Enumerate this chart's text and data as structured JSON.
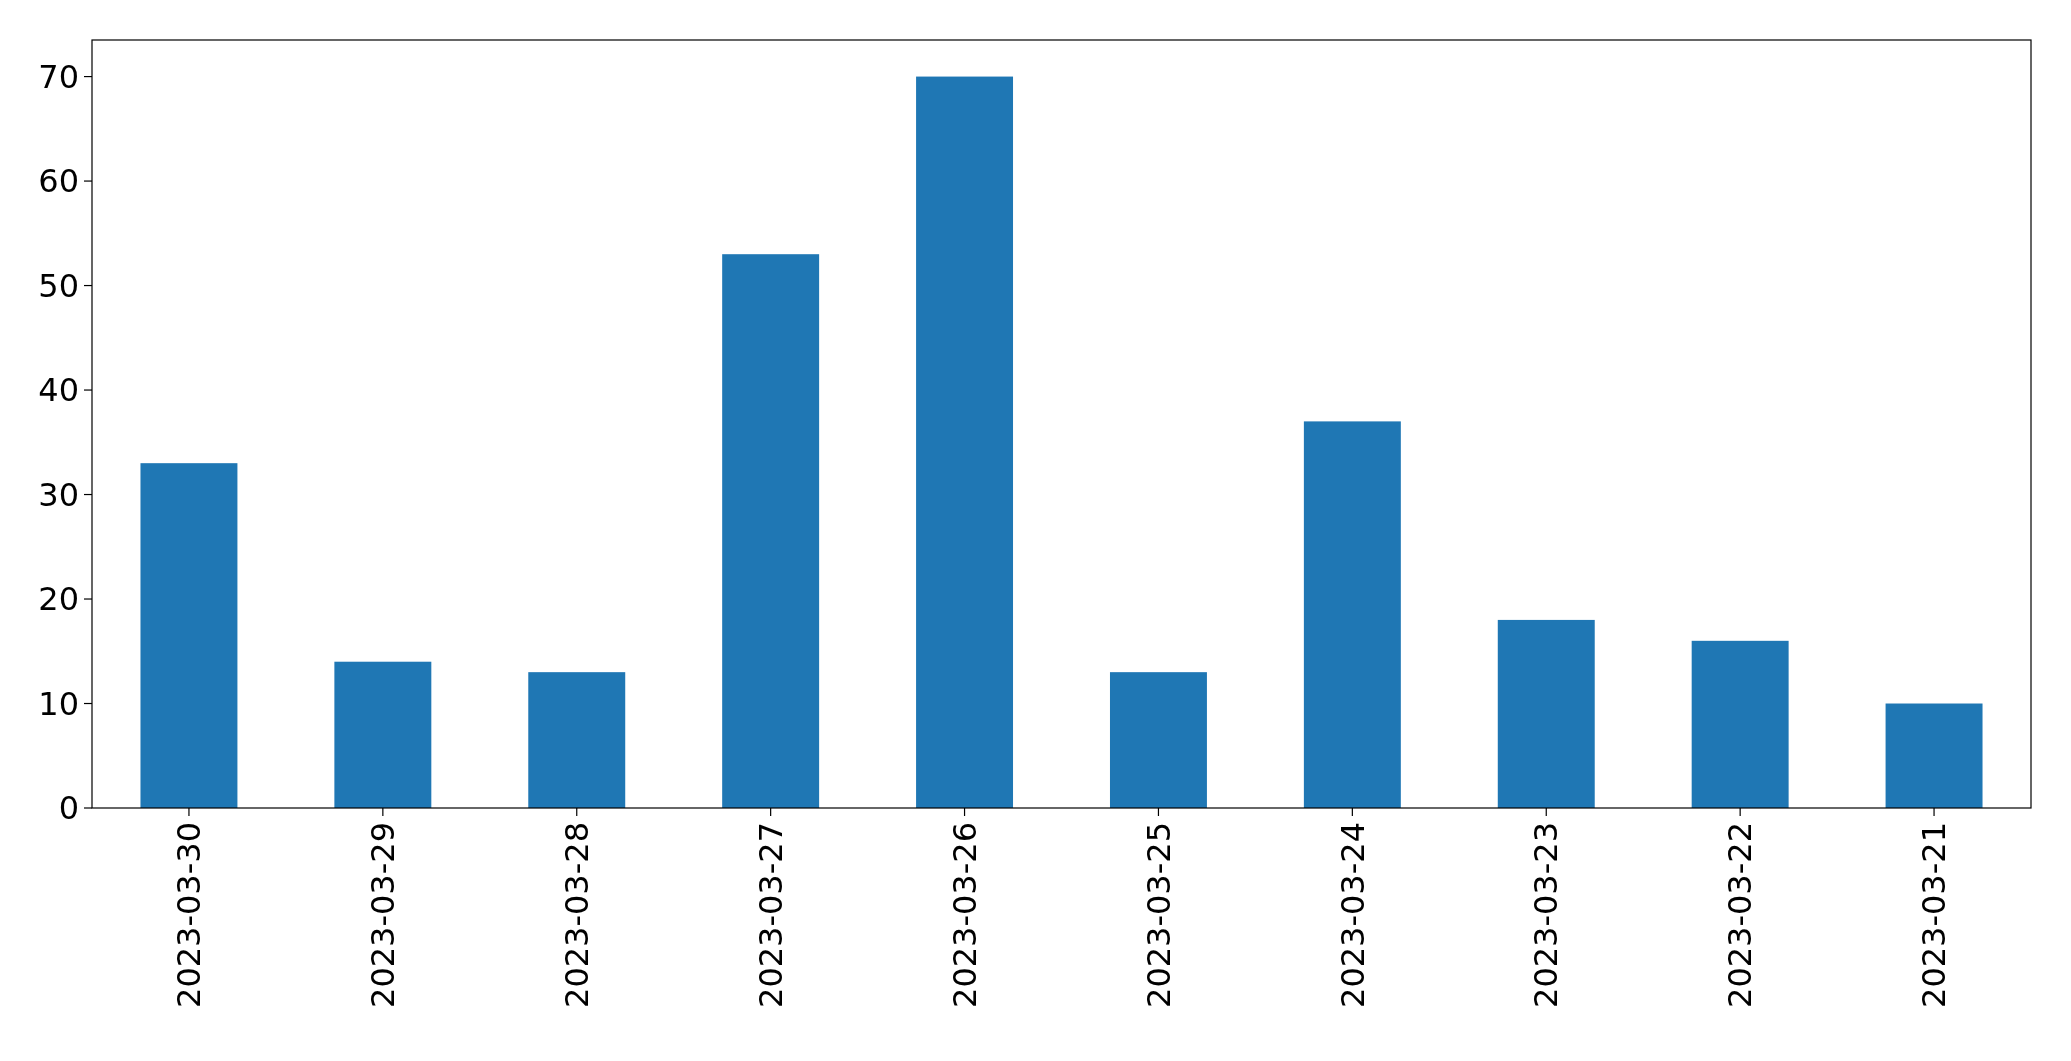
{
  "chart_data": {
    "type": "bar",
    "categories": [
      "2023-03-30",
      "2023-03-29",
      "2023-03-28",
      "2023-03-27",
      "2023-03-26",
      "2023-03-25",
      "2023-03-24",
      "2023-03-23",
      "2023-03-22",
      "2023-03-21"
    ],
    "values": [
      33,
      14,
      13,
      53,
      70,
      13,
      37,
      18,
      16,
      10
    ],
    "color": "#1f77b4",
    "ylim": [
      0,
      73.5
    ],
    "yticks": [
      0,
      10,
      20,
      30,
      40,
      50,
      60,
      70
    ],
    "grid": false
  }
}
